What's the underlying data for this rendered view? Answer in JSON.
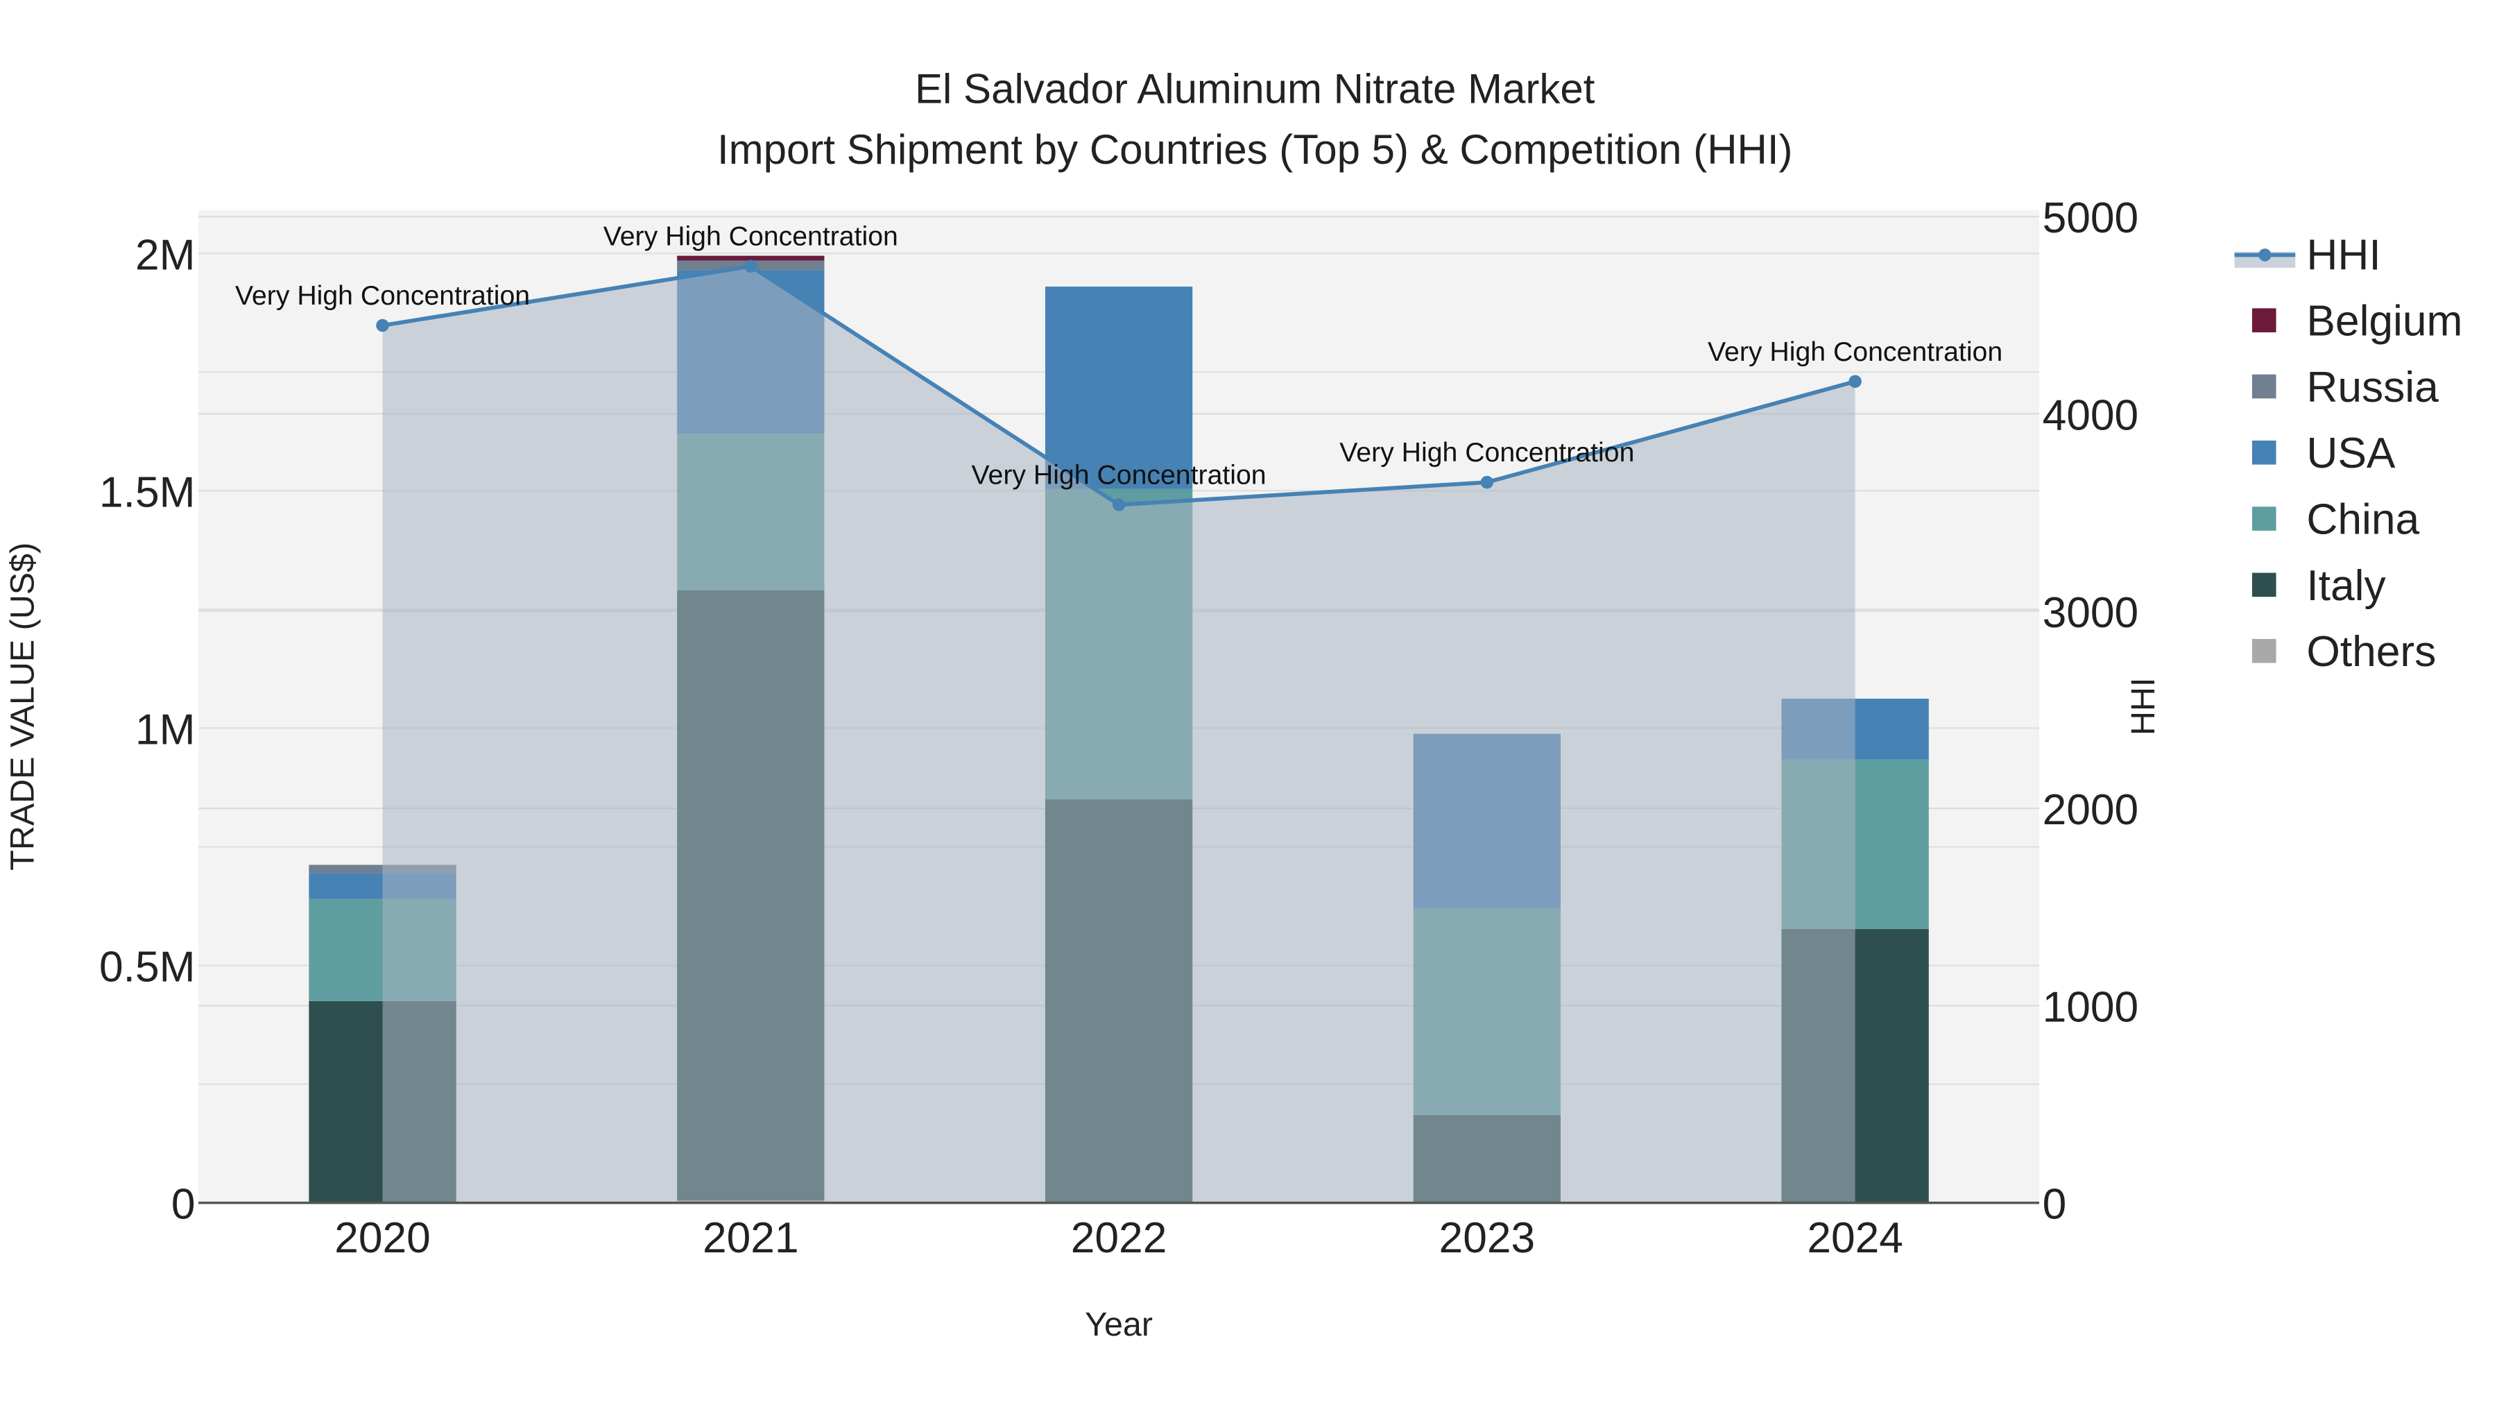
{
  "chart_data": {
    "type": "bar",
    "stacked": true,
    "title": "El Salvador Aluminum Nitrate Market",
    "subtitle": "Import Shipment by Countries (Top 5) & Competition (HHI)",
    "xlabel": "Year",
    "ylabel": "TRADE VALUE (US$)",
    "y2label": "HHI",
    "categories": [
      "2020",
      "2021",
      "2022",
      "2023",
      "2024"
    ],
    "ylim": [
      0,
      2.08
    ],
    "y_unit": "M",
    "y_ticks": [
      {
        "v": 0,
        "label": "0"
      },
      {
        "v": 0.5,
        "label": "0.5M"
      },
      {
        "v": 1,
        "label": "1M"
      },
      {
        "v": 1.5,
        "label": "1.5M"
      },
      {
        "v": 2,
        "label": "2M"
      }
    ],
    "y2lim": [
      0,
      5000
    ],
    "y2_ticks": [
      {
        "v": 0,
        "label": "0"
      },
      {
        "v": 1000,
        "label": "1000"
      },
      {
        "v": 2000,
        "label": "2000"
      },
      {
        "v": 3000,
        "label": "3000"
      },
      {
        "v": 4000,
        "label": "4000"
      },
      {
        "v": 5000,
        "label": "5000"
      }
    ],
    "series": [
      {
        "name": "Others",
        "color": "#a9a9a9",
        "values": [
          0,
          0.005,
          0,
          0,
          0
        ]
      },
      {
        "name": "Italy",
        "color": "#2f4f4f",
        "values": [
          0.425,
          1.285,
          0.85,
          0.185,
          0.577
        ]
      },
      {
        "name": "China",
        "color": "#5f9ea0",
        "values": [
          0.215,
          0.33,
          0.654,
          0.435,
          0.357
        ]
      },
      {
        "name": "USA",
        "color": "#4682b4",
        "values": [
          0.055,
          0.345,
          0.426,
          0.368,
          0.128
        ]
      },
      {
        "name": "Russia",
        "color": "#708090",
        "values": [
          0.017,
          0.02,
          0,
          0,
          0
        ]
      },
      {
        "name": "Belgium",
        "color": "#6b1a3a",
        "values": [
          0,
          0.01,
          0,
          0,
          0
        ]
      }
    ],
    "hhi": {
      "name": "HHI",
      "color": "#4682b4",
      "values": [
        4448,
        4748,
        3539,
        3653,
        4164
      ],
      "annotations": [
        "Very High Concentration",
        "Very High Concentration",
        "Very High Concentration",
        "Very High Concentration",
        "Very High Concentration"
      ]
    },
    "legend": [
      "HHI",
      "Belgium",
      "Russia",
      "USA",
      "China",
      "Italy",
      "Others"
    ],
    "legend_position": "right",
    "grid": true
  }
}
